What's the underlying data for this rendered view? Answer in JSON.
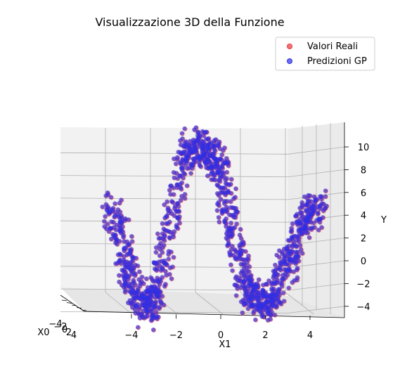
{
  "chart_data": {
    "type": "scatter",
    "title": "Visualizzazione 3D della Funzione",
    "xlabel": "X1",
    "ylabel": "Y",
    "x0label": "X0",
    "x1_ticks": [
      "−4",
      "−2",
      "0",
      "2",
      "4"
    ],
    "y_ticks": [
      "10",
      "8",
      "6",
      "4",
      "2",
      "0",
      "−2",
      "−4"
    ],
    "x0_ticks": [
      "−4",
      "−2",
      "0",
      "2",
      "4"
    ],
    "x1_range": [
      -5,
      5
    ],
    "y_range": [
      -4.5,
      11.5
    ],
    "grid": true,
    "legend_position": "top-right",
    "series": [
      {
        "name": "Valori Reali",
        "color": "#e8393a",
        "curve_x1": [
          -4.6,
          -4.2,
          -3.8,
          -3.4,
          -3.0,
          -2.6,
          -2.2,
          -1.8,
          -1.4,
          -1.0,
          -0.6,
          -0.2,
          0.2,
          0.6,
          1.0,
          1.4,
          1.8,
          2.2,
          2.6,
          3.0,
          3.4,
          3.8,
          4.2,
          4.6
        ],
        "curve_y": [
          5.2,
          2.4,
          -0.9,
          -2.8,
          -3.9,
          -3.2,
          1.5,
          5.5,
          9.6,
          10.5,
          10.1,
          9.9,
          8.3,
          4.2,
          0.4,
          -2.3,
          -3.0,
          -3.5,
          -2.2,
          -0.4,
          1.2,
          3.8,
          4.8,
          4.9
        ]
      },
      {
        "name": "Predizioni GP",
        "color": "#2f2fe6",
        "curve_x1": [
          -4.6,
          -4.2,
          -3.8,
          -3.4,
          -3.0,
          -2.6,
          -2.2,
          -1.8,
          -1.4,
          -1.0,
          -0.6,
          -0.2,
          0.2,
          0.6,
          1.0,
          1.4,
          1.8,
          2.2,
          2.6,
          3.0,
          3.4,
          3.8,
          4.2,
          4.6
        ],
        "curve_y": [
          5.2,
          2.4,
          -0.9,
          -2.8,
          -3.9,
          -3.2,
          1.5,
          5.5,
          9.6,
          10.5,
          10.1,
          9.9,
          8.3,
          4.2,
          0.4,
          -2.3,
          -3.0,
          -3.5,
          -2.2,
          -0.4,
          1.2,
          3.8,
          4.8,
          4.9
        ]
      }
    ]
  }
}
